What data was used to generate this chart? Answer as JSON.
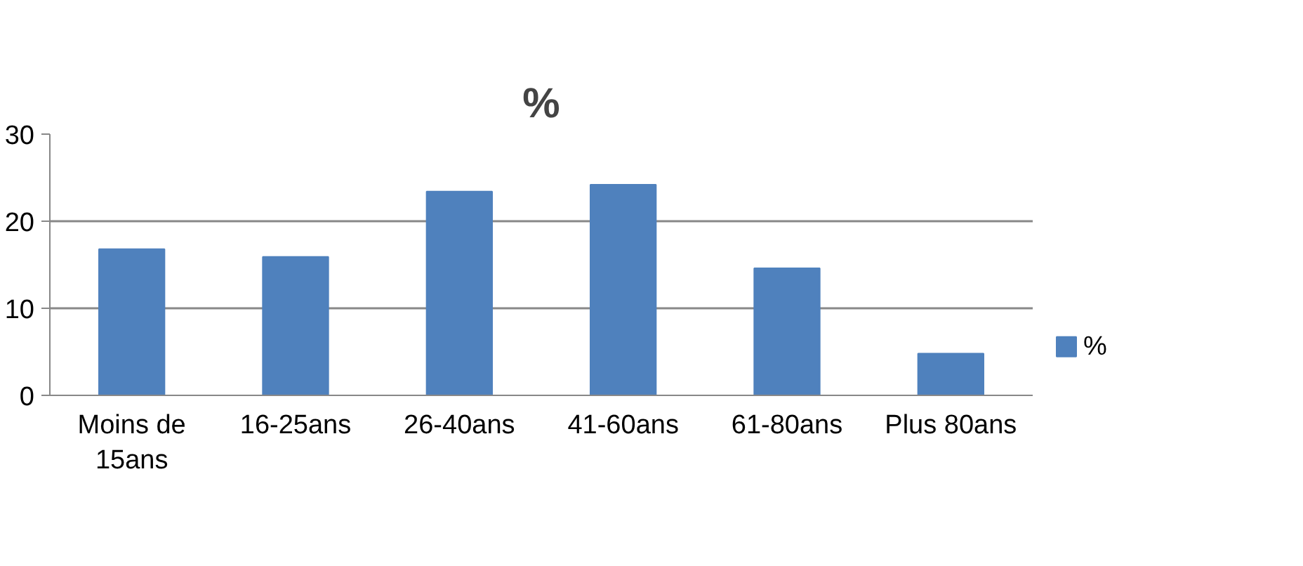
{
  "chart_data": {
    "type": "bar",
    "title": "%",
    "categories": [
      "Moins de 15ans",
      "16-25ans",
      "26-40ans",
      "41-60ans",
      "61-80ans",
      "Plus 80ans"
    ],
    "series": [
      {
        "name": "%",
        "color": "#4f81bd",
        "values": [
          16.8,
          15.9,
          23.4,
          24.2,
          14.6,
          4.8
        ]
      }
    ],
    "ylim": [
      0,
      30
    ],
    "yticks": [
      0,
      10,
      20,
      30
    ],
    "grid": "y",
    "legend": "right"
  }
}
